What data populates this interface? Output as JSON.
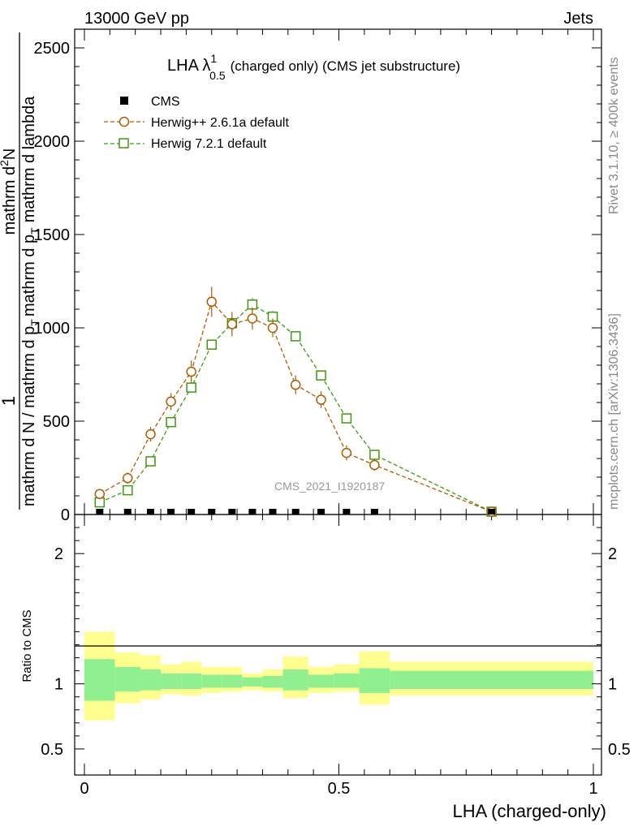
{
  "header": {
    "left": "13000 GeV pp",
    "right": "Jets"
  },
  "side_labels": {
    "rivet": "Rivet 3.1.10, ≥ 400k events",
    "mcplots": "mcplots.cern.ch [arXiv:1306.3436]"
  },
  "colors": {
    "herwig_old": "#b35a00",
    "herwig_new": "#3f9a0f",
    "band_outer": "#ffff90",
    "band_inner": "#90f090",
    "cms": "#000000"
  },
  "chart_data": [
    {
      "type": "scatter",
      "title_main": "LHA λ",
      "title_sup": "1",
      "title_sub": "0.5",
      "title_rest": "(charged only) (CMS jet substructure)",
      "watermark": "CMS_2021_I1920187",
      "ylabel_num": "1",
      "ylabel_den": "mathrm d N / mathrm d p",
      "ylabel_den_sub": "T",
      "ylabel2_num": "mathrm d",
      "ylabel2_num_sup": "2",
      "ylabel2_num_rest": "N",
      "ylabel2_den": "mathrm d p",
      "ylabel2_den_sub": "T",
      "ylabel2_den_rest": "mathrm d lambda",
      "xlim": [
        0,
        1
      ],
      "ylim": [
        0,
        2600
      ],
      "yticks": [
        0,
        500,
        1000,
        1500,
        2000,
        2500
      ],
      "ytick_labels": [
        "0",
        "500",
        "1000",
        "1500",
        "2000",
        "2500"
      ],
      "legend": [
        "CMS",
        "Herwig++ 2.6.1a default",
        "Herwig 7.2.1 default"
      ],
      "series": [
        {
          "name": "CMS",
          "marker": "square",
          "x": [
            0.03,
            0.085,
            0.13,
            0.17,
            0.21,
            0.25,
            0.29,
            0.33,
            0.37,
            0.415,
            0.465,
            0.515,
            0.57,
            0.8
          ],
          "y": [
            0,
            0,
            0,
            0,
            0,
            0,
            0,
            0,
            0,
            0,
            0,
            0,
            0,
            0
          ]
        },
        {
          "name": "Herwig++ 2.6.1a default",
          "marker": "circle",
          "x": [
            0.03,
            0.085,
            0.13,
            0.17,
            0.21,
            0.25,
            0.29,
            0.33,
            0.37,
            0.415,
            0.465,
            0.515,
            0.57,
            0.8
          ],
          "y": [
            110,
            195,
            430,
            605,
            765,
            1140,
            1020,
            1050,
            1000,
            695,
            615,
            330,
            265,
            15
          ],
          "err": [
            20,
            30,
            40,
            45,
            60,
            80,
            65,
            60,
            50,
            50,
            45,
            40,
            30,
            5
          ]
        },
        {
          "name": "Herwig 7.2.1 default",
          "marker": "square-open",
          "x": [
            0.03,
            0.085,
            0.13,
            0.17,
            0.21,
            0.25,
            0.29,
            0.33,
            0.37,
            0.415,
            0.465,
            0.515,
            0.57,
            0.8
          ],
          "y": [
            65,
            130,
            285,
            495,
            680,
            910,
            1025,
            1125,
            1060,
            955,
            745,
            515,
            320,
            15
          ],
          "err": [
            10,
            15,
            20,
            20,
            25,
            25,
            30,
            35,
            30,
            25,
            20,
            20,
            15,
            4
          ]
        }
      ]
    },
    {
      "type": "ratio",
      "ylabel": "Ratio to CMS",
      "xlabel": "LHA (charged-only)",
      "ylim": [
        0.3,
        2.3
      ],
      "yticks": [
        0.5,
        1,
        2
      ],
      "ytick_labels": [
        "0.5",
        "1",
        "2"
      ],
      "xticks": [
        0,
        0.5,
        1
      ],
      "xtick_labels": [
        "0",
        "0.5",
        "1"
      ],
      "bins": [
        0,
        0.06,
        0.11,
        0.15,
        0.19,
        0.23,
        0.27,
        0.31,
        0.35,
        0.39,
        0.44,
        0.49,
        0.54,
        0.6,
        1.0
      ],
      "outer_lo": [
        0.72,
        0.85,
        0.88,
        0.92,
        0.91,
        0.93,
        0.94,
        0.95,
        0.94,
        0.89,
        0.93,
        0.94,
        0.84,
        0.91
      ],
      "outer_hi": [
        1.4,
        1.24,
        1.22,
        1.15,
        1.17,
        1.13,
        1.13,
        1.08,
        1.11,
        1.21,
        1.13,
        1.15,
        1.25,
        1.17
      ],
      "inner_lo": [
        0.87,
        0.94,
        0.95,
        0.96,
        0.96,
        0.97,
        0.97,
        0.98,
        0.97,
        0.95,
        0.97,
        0.97,
        0.93,
        0.96
      ],
      "inner_hi": [
        1.19,
        1.13,
        1.11,
        1.08,
        1.08,
        1.07,
        1.07,
        1.05,
        1.06,
        1.11,
        1.07,
        1.08,
        1.12,
        1.1
      ]
    }
  ]
}
